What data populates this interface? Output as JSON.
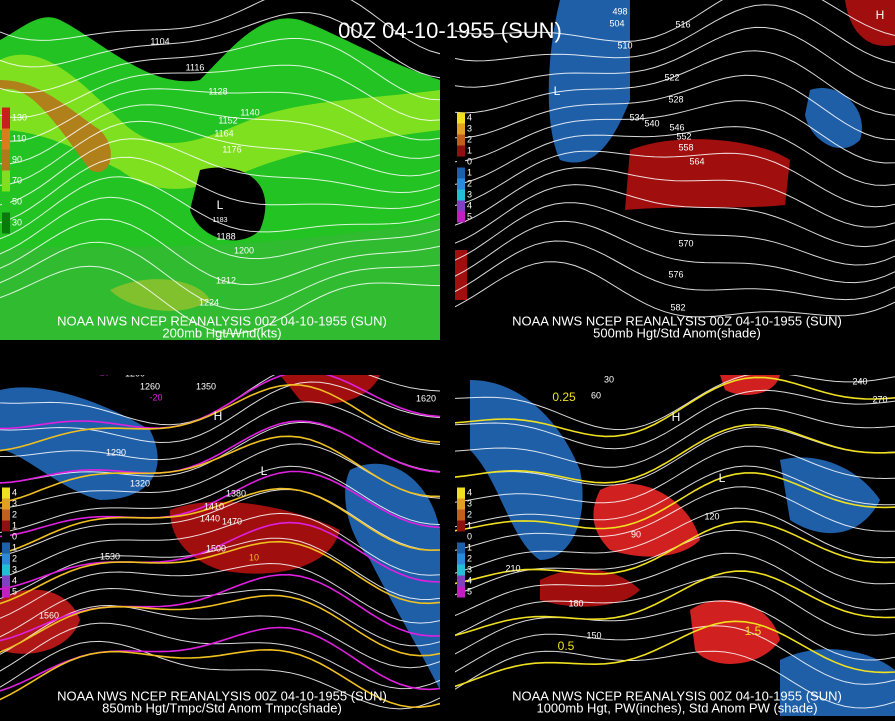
{
  "header": {
    "title": "00Z 04-10-1955 (SUN)"
  },
  "panels": [
    {
      "source": "NOAA NWS NCEP REANALYSIS 00Z 04-10-1955 (SUN)",
      "caption": "200mb Hgt/Wnd(kts)",
      "legend": [
        "130",
        "110",
        "90",
        "70",
        "50",
        "30"
      ],
      "labels": [
        "1104",
        "1116",
        "1128",
        "1140",
        "1152",
        "1164",
        "1176",
        "1188",
        "1200",
        "1212",
        "1224",
        "L",
        "1183"
      ]
    },
    {
      "source": "NOAA NWS NCEP REANALYSIS 00Z 04-10-1955 (SUN)",
      "caption": "500mb Hgt/Std Anom(shade)",
      "legend": [
        "4",
        "3",
        "2",
        "1",
        "0",
        "1",
        "2",
        "3",
        "4",
        "5"
      ],
      "labels": [
        "498",
        "504",
        "510",
        "516",
        "522",
        "528",
        "534",
        "540",
        "546",
        "552",
        "558",
        "564",
        "570",
        "576",
        "582",
        "L",
        "H"
      ]
    },
    {
      "source": "NOAA NWS NCEP REANALYSIS 00Z 04-10-1955 (SUN)",
      "caption": "850mb Hgt/Tmpc/Std Anom Tmpc(shade)",
      "legend": [
        "4",
        "3",
        "2",
        "1",
        "0",
        "1",
        "2",
        "3",
        "4",
        "5"
      ],
      "labels": [
        "1200",
        "1260",
        "1290",
        "1320",
        "1350",
        "1380",
        "1410",
        "1440",
        "1470",
        "1500",
        "1530",
        "1560",
        "1620",
        "-10",
        "-20",
        "10",
        "L",
        "H"
      ]
    },
    {
      "source": "NOAA NWS NCEP REANALYSIS 00Z 04-10-1955 (SUN)",
      "caption": "1000mb Hgt, PW(inches), Std Anom PW (shade)",
      "legend": [
        "4",
        "3",
        "2",
        "1",
        "0",
        "1",
        "2",
        "3",
        "4",
        "5"
      ],
      "labels": [
        "30",
        "60",
        "90",
        "120",
        "150",
        "180",
        "210",
        "240",
        "270",
        "0.25",
        "0.5",
        "1.5",
        "L",
        "H"
      ]
    }
  ]
}
